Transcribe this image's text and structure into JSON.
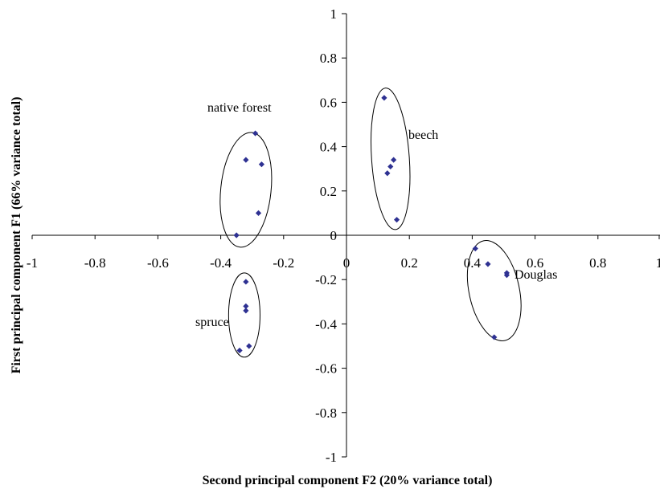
{
  "chart_data": {
    "type": "scatter",
    "xlabel": "Second principal component F2 (20% variance total)",
    "ylabel": "First principal component F1 (66% variance total)",
    "xlim": [
      -1,
      1
    ],
    "ylim": [
      -1,
      1
    ],
    "x_ticks": [
      -1,
      -0.8,
      -0.6,
      -0.4,
      -0.2,
      0,
      0.2,
      0.4,
      0.6,
      0.8,
      1
    ],
    "x_tick_labels": [
      "-1",
      "-0.8",
      "-0.6",
      "-0.4",
      "-0.2",
      "0",
      "0.2",
      "0.4",
      "0.6",
      "0.8",
      "1"
    ],
    "y_ticks": [
      1,
      0.8,
      0.6,
      0.4,
      0.2,
      0,
      -0.2,
      -0.4,
      -0.6,
      -0.8,
      -1
    ],
    "y_tick_labels": [
      "1",
      "0.8",
      "0.6",
      "0.4",
      "0.2",
      "0",
      "-0.2",
      "-0.4",
      "-0.6",
      "-0.8",
      "-1"
    ],
    "grid": false,
    "marker": "diamond",
    "marker_color": "#2e3192",
    "groups": [
      {
        "label": "native forest",
        "points": [
          [
            -0.29,
            0.46
          ],
          [
            -0.32,
            0.34
          ],
          [
            -0.27,
            0.32
          ],
          [
            -0.28,
            0.1
          ],
          [
            -0.35,
            0.0
          ]
        ],
        "ellipse": {
          "cx": -0.32,
          "cy": 0.205,
          "rx": 0.08,
          "ry": 0.26,
          "rotate": 6
        }
      },
      {
        "label": "beech",
        "points": [
          [
            0.12,
            0.62
          ],
          [
            0.15,
            0.34
          ],
          [
            0.14,
            0.31
          ],
          [
            0.13,
            0.28
          ],
          [
            0.16,
            0.07
          ]
        ],
        "ellipse": {
          "cx": 0.14,
          "cy": 0.345,
          "rx": 0.06,
          "ry": 0.32,
          "rotate": -4
        }
      },
      {
        "label": "spruce",
        "points": [
          [
            -0.32,
            -0.21
          ],
          [
            -0.32,
            -0.32
          ],
          [
            -0.32,
            -0.34
          ],
          [
            -0.31,
            -0.5
          ],
          [
            -0.34,
            -0.52
          ]
        ],
        "ellipse": {
          "cx": -0.325,
          "cy": -0.36,
          "rx": 0.05,
          "ry": 0.19,
          "rotate": 0
        }
      },
      {
        "label": "Douglas",
        "points": [
          [
            0.41,
            -0.06
          ],
          [
            0.45,
            -0.13
          ],
          [
            0.51,
            -0.17
          ],
          [
            0.51,
            -0.18
          ],
          [
            0.47,
            -0.46
          ]
        ],
        "ellipse": {
          "cx": 0.47,
          "cy": -0.25,
          "rx": 0.08,
          "ry": 0.23,
          "rotate": -12
        }
      }
    ]
  }
}
